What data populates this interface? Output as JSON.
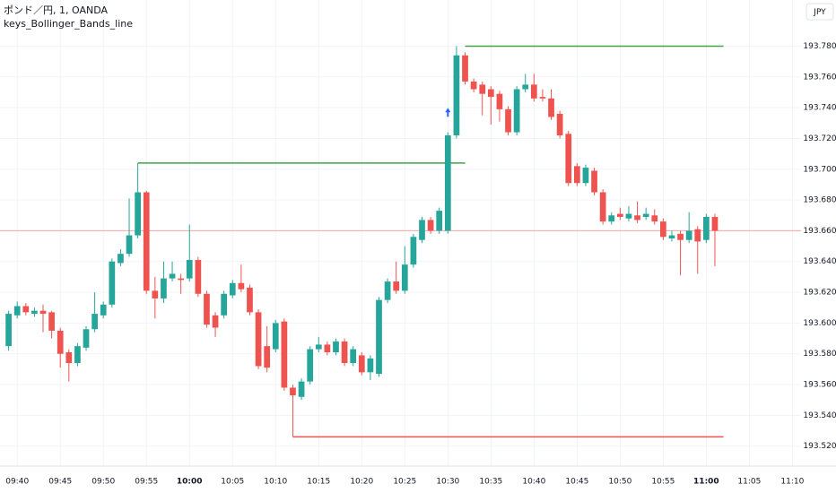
{
  "chart_data": {
    "type": "candlestick",
    "title": "ポンド／円, 1, OANDA",
    "indicator": "keys_Bollinger_Bands_line",
    "currency": "JPY",
    "x": [
      "09:39",
      "09:40",
      "09:41",
      "09:42",
      "09:43",
      "09:44",
      "09:45",
      "09:46",
      "09:47",
      "09:48",
      "09:49",
      "09:50",
      "09:51",
      "09:52",
      "09:53",
      "09:54",
      "09:55",
      "09:56",
      "09:57",
      "09:58",
      "09:59",
      "10:00",
      "10:01",
      "10:02",
      "10:03",
      "10:04",
      "10:05",
      "10:06",
      "10:07",
      "10:08",
      "10:09",
      "10:10",
      "10:11",
      "10:12",
      "10:13",
      "10:14",
      "10:15",
      "10:16",
      "10:17",
      "10:18",
      "10:19",
      "10:20",
      "10:21",
      "10:22",
      "10:23",
      "10:24",
      "10:25",
      "10:26",
      "10:27",
      "10:28",
      "10:29",
      "10:30",
      "10:31",
      "10:32",
      "10:33",
      "10:34",
      "10:35",
      "10:36",
      "10:37",
      "10:38",
      "10:39",
      "10:40",
      "10:41",
      "10:42",
      "10:43",
      "10:44",
      "10:45",
      "10:46",
      "10:47",
      "10:48",
      "10:49",
      "10:50",
      "10:51",
      "10:52",
      "10:53",
      "10:54",
      "10:55",
      "10:56",
      "10:57",
      "10:58",
      "10:59",
      "11:00",
      "11:01"
    ],
    "open": [
      193.585,
      193.605,
      193.611,
      193.606,
      193.608,
      193.607,
      193.595,
      193.581,
      193.574,
      193.584,
      193.596,
      193.605,
      193.612,
      193.639,
      193.645,
      193.657,
      193.685,
      193.621,
      193.616,
      193.629,
      193.629,
      193.629,
      193.641,
      193.619,
      193.605,
      193.605,
      193.618,
      193.626,
      193.623,
      193.607,
      193.585,
      193.583,
      193.601,
      193.558,
      193.552,
      193.562,
      193.583,
      193.586,
      193.581,
      193.588,
      193.574,
      193.579,
      193.568,
      193.567,
      193.615,
      193.627,
      193.621,
      193.638,
      193.654,
      193.667,
      193.66,
      193.66,
      193.722,
      193.774,
      193.757,
      193.755,
      193.752,
      193.749,
      193.739,
      193.724,
      193.752,
      193.755,
      193.747,
      193.746,
      193.736,
      193.723,
      193.702,
      193.691,
      193.699,
      193.685,
      193.666,
      193.671,
      193.668,
      193.67,
      193.669,
      193.67,
      193.666,
      193.655,
      193.658,
      193.654,
      193.661,
      193.654,
      193.669
    ],
    "high": [
      193.608,
      193.614,
      193.613,
      193.61,
      193.612,
      193.608,
      193.597,
      193.583,
      193.587,
      193.598,
      193.62,
      193.614,
      193.642,
      193.648,
      193.681,
      193.704,
      193.686,
      193.63,
      193.64,
      193.64,
      193.632,
      193.664,
      193.643,
      193.621,
      193.607,
      193.621,
      193.628,
      193.638,
      193.625,
      193.609,
      193.598,
      193.602,
      193.603,
      193.56,
      193.564,
      193.585,
      193.591,
      193.588,
      193.59,
      193.59,
      193.585,
      193.581,
      193.579,
      193.617,
      193.629,
      193.64,
      193.65,
      193.658,
      193.669,
      193.669,
      193.675,
      193.724,
      193.78,
      193.776,
      193.759,
      193.757,
      193.754,
      193.751,
      193.741,
      193.754,
      193.762,
      193.762,
      193.752,
      193.752,
      193.738,
      193.725,
      193.704,
      193.703,
      193.701,
      193.687,
      193.672,
      193.675,
      193.676,
      193.679,
      193.675,
      193.674,
      193.668,
      193.66,
      193.66,
      193.672,
      193.663,
      193.671,
      193.671
    ],
    "low": [
      193.582,
      193.603,
      193.605,
      193.604,
      193.594,
      193.59,
      193.571,
      193.562,
      193.572,
      193.582,
      193.594,
      193.603,
      193.61,
      193.637,
      193.643,
      193.655,
      193.619,
      193.603,
      193.613,
      193.627,
      193.619,
      193.627,
      193.617,
      193.597,
      193.591,
      193.603,
      193.616,
      193.62,
      193.605,
      193.57,
      193.568,
      193.581,
      193.556,
      193.526,
      193.55,
      193.56,
      193.581,
      193.579,
      193.579,
      193.572,
      193.572,
      193.566,
      193.563,
      193.565,
      193.613,
      193.619,
      193.619,
      193.636,
      193.652,
      193.658,
      193.658,
      193.658,
      193.72,
      193.755,
      193.75,
      193.735,
      193.729,
      193.731,
      193.722,
      193.722,
      193.75,
      193.744,
      193.744,
      193.732,
      193.72,
      193.689,
      193.689,
      193.689,
      193.683,
      193.664,
      193.664,
      193.667,
      193.666,
      193.665,
      193.667,
      193.664,
      193.654,
      193.653,
      193.631,
      193.652,
      193.632,
      193.652,
      193.637
    ],
    "close": [
      193.606,
      193.611,
      193.607,
      193.608,
      193.606,
      193.595,
      193.58,
      193.574,
      193.585,
      193.596,
      193.606,
      193.612,
      193.64,
      193.645,
      193.657,
      193.685,
      193.621,
      193.616,
      193.629,
      193.632,
      193.628,
      193.641,
      193.619,
      193.599,
      193.597,
      193.619,
      193.626,
      193.622,
      193.607,
      193.572,
      193.571,
      193.6,
      193.558,
      193.553,
      193.562,
      193.583,
      193.586,
      193.581,
      193.588,
      193.574,
      193.583,
      193.568,
      193.577,
      193.615,
      193.627,
      193.621,
      193.638,
      193.656,
      193.667,
      193.66,
      193.673,
      193.722,
      193.774,
      193.757,
      193.752,
      193.749,
      193.747,
      193.739,
      193.724,
      193.752,
      193.755,
      193.746,
      193.746,
      193.734,
      193.722,
      193.691,
      193.691,
      193.701,
      193.685,
      193.666,
      193.67,
      193.669,
      193.671,
      193.667,
      193.671,
      193.666,
      193.656,
      193.657,
      193.654,
      193.66,
      193.653,
      193.669,
      193.66
    ],
    "up_color": "#26a69a",
    "down_color": "#ef5350",
    "xlim": [
      "09:38",
      "11:11"
    ],
    "xticks": [
      "09:40",
      "09:45",
      "09:50",
      "09:55",
      "10:00",
      "10:05",
      "10:10",
      "10:15",
      "10:20",
      "10:25",
      "10:30",
      "10:35",
      "10:40",
      "10:45",
      "10:50",
      "10:55",
      "11:00",
      "11:05",
      "11:10"
    ],
    "ylim": [
      193.507,
      193.81
    ],
    "yticks": [
      {
        "value": 193.52,
        "label": "193.520"
      },
      {
        "value": 193.54,
        "label": "193.540"
      },
      {
        "value": 193.56,
        "label": "193.560"
      },
      {
        "value": 193.58,
        "label": "193.580"
      },
      {
        "value": 193.6,
        "label": "193.600"
      },
      {
        "value": 193.62,
        "label": "193.620"
      },
      {
        "value": 193.64,
        "label": "193.640"
      },
      {
        "value": 193.66,
        "label": "193.660"
      },
      {
        "value": 193.68,
        "label": "193.680"
      },
      {
        "value": 193.7,
        "label": "193.700"
      },
      {
        "value": 193.72,
        "label": "193.720"
      },
      {
        "value": 193.74,
        "label": "193.740"
      },
      {
        "value": 193.76,
        "label": "193.760"
      },
      {
        "value": 193.78,
        "label": "193.780"
      }
    ],
    "grid": true,
    "lines": [
      {
        "start": "09:54",
        "end": "10:32",
        "value": 193.704,
        "color": "#43a047"
      },
      {
        "start": "10:32",
        "end": "11:02",
        "value": 193.78,
        "color": "#43a047"
      },
      {
        "start": "10:12",
        "end": "11:02",
        "value": 193.526,
        "color": "#ef5350"
      }
    ],
    "price_line": {
      "value": 193.66,
      "color": "#f4a6a6"
    },
    "markers": [
      {
        "x": "10:30",
        "value": 193.737,
        "color": "#2962ff"
      }
    ]
  }
}
